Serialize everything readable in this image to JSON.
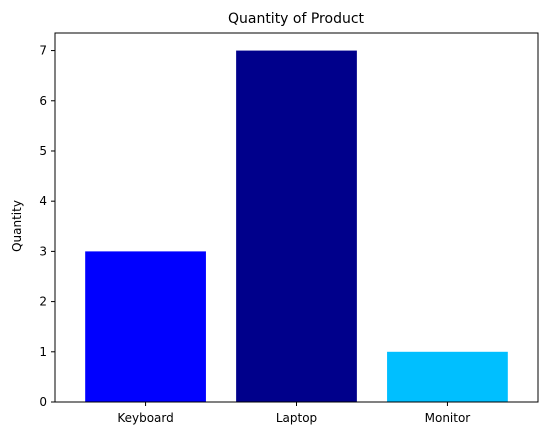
{
  "chart_data": {
    "type": "bar",
    "title": "Quantity of Product",
    "xlabel": "",
    "ylabel": "Quantity",
    "categories": [
      "Keyboard",
      "Laptop",
      "Monitor"
    ],
    "values": [
      3,
      7,
      1
    ],
    "colors": [
      "#0000ff",
      "#00008b",
      "#00bfff"
    ],
    "ylim": [
      0,
      7.35
    ],
    "yticks": [
      "0",
      "1",
      "2",
      "3",
      "4",
      "5",
      "6",
      "7"
    ],
    "grid": false
  }
}
